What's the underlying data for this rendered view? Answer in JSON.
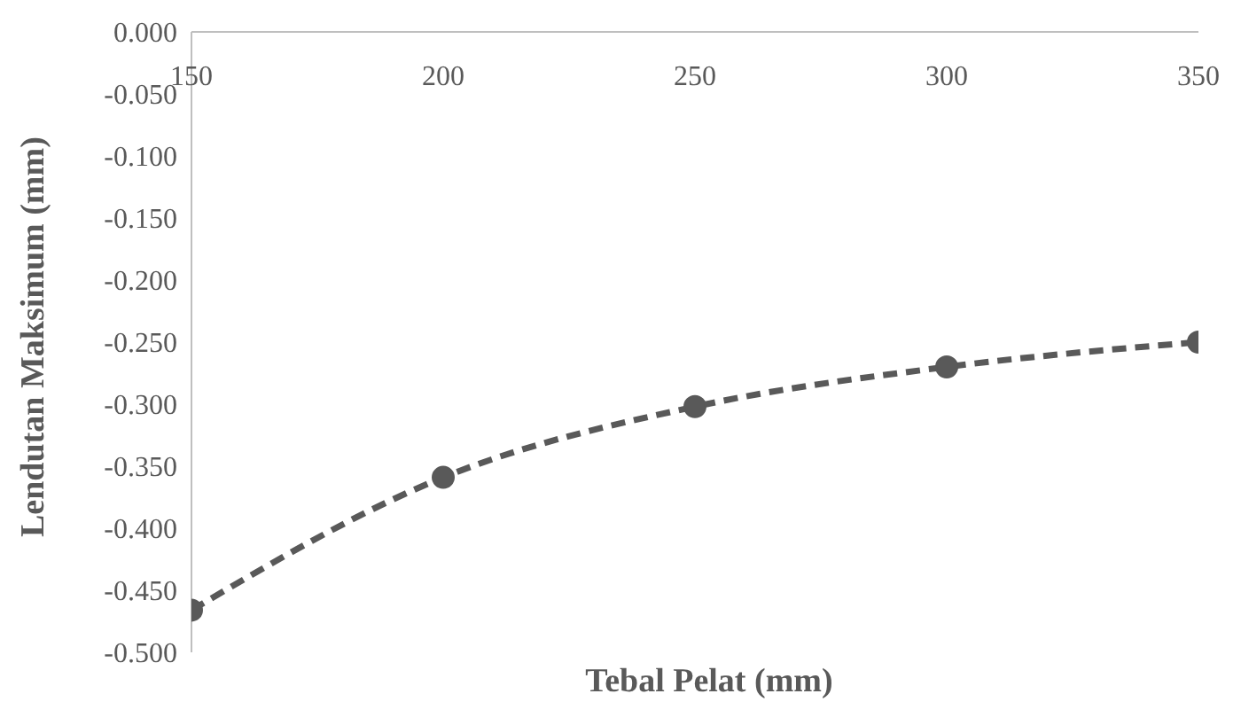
{
  "chart_data": {
    "type": "line",
    "xlabel": "Tebal Pelat (mm)",
    "ylabel": "Lendutan Maksimum (mm)",
    "x": [
      150,
      200,
      250,
      300,
      350
    ],
    "series": [
      {
        "color": "#595959",
        "values": [
          -0.466,
          -0.359,
          -0.302,
          -0.27,
          -0.25
        ]
      }
    ],
    "xlim": [
      150,
      350
    ],
    "xticks": [
      150,
      200,
      250,
      300,
      350
    ],
    "ylim": [
      -0.5,
      0
    ],
    "yticks": [
      {
        "value": 0,
        "label": "0.000"
      },
      {
        "value": -0.05,
        "label": "-0.050"
      },
      {
        "value": -0.1,
        "label": "-0.100"
      },
      {
        "value": -0.15,
        "label": "-0.150"
      },
      {
        "value": -0.2,
        "label": "-0.200"
      },
      {
        "value": -0.25,
        "label": "-0.250"
      },
      {
        "value": -0.3,
        "label": "-0.300"
      },
      {
        "value": -0.35,
        "label": "-0.350"
      },
      {
        "value": -0.4,
        "label": "-0.400"
      },
      {
        "value": -0.45,
        "label": "-0.450"
      },
      {
        "value": -0.5,
        "label": "-0.500"
      }
    ],
    "grid": false,
    "legend": false,
    "marker": "circle",
    "line_style": "dashed"
  }
}
